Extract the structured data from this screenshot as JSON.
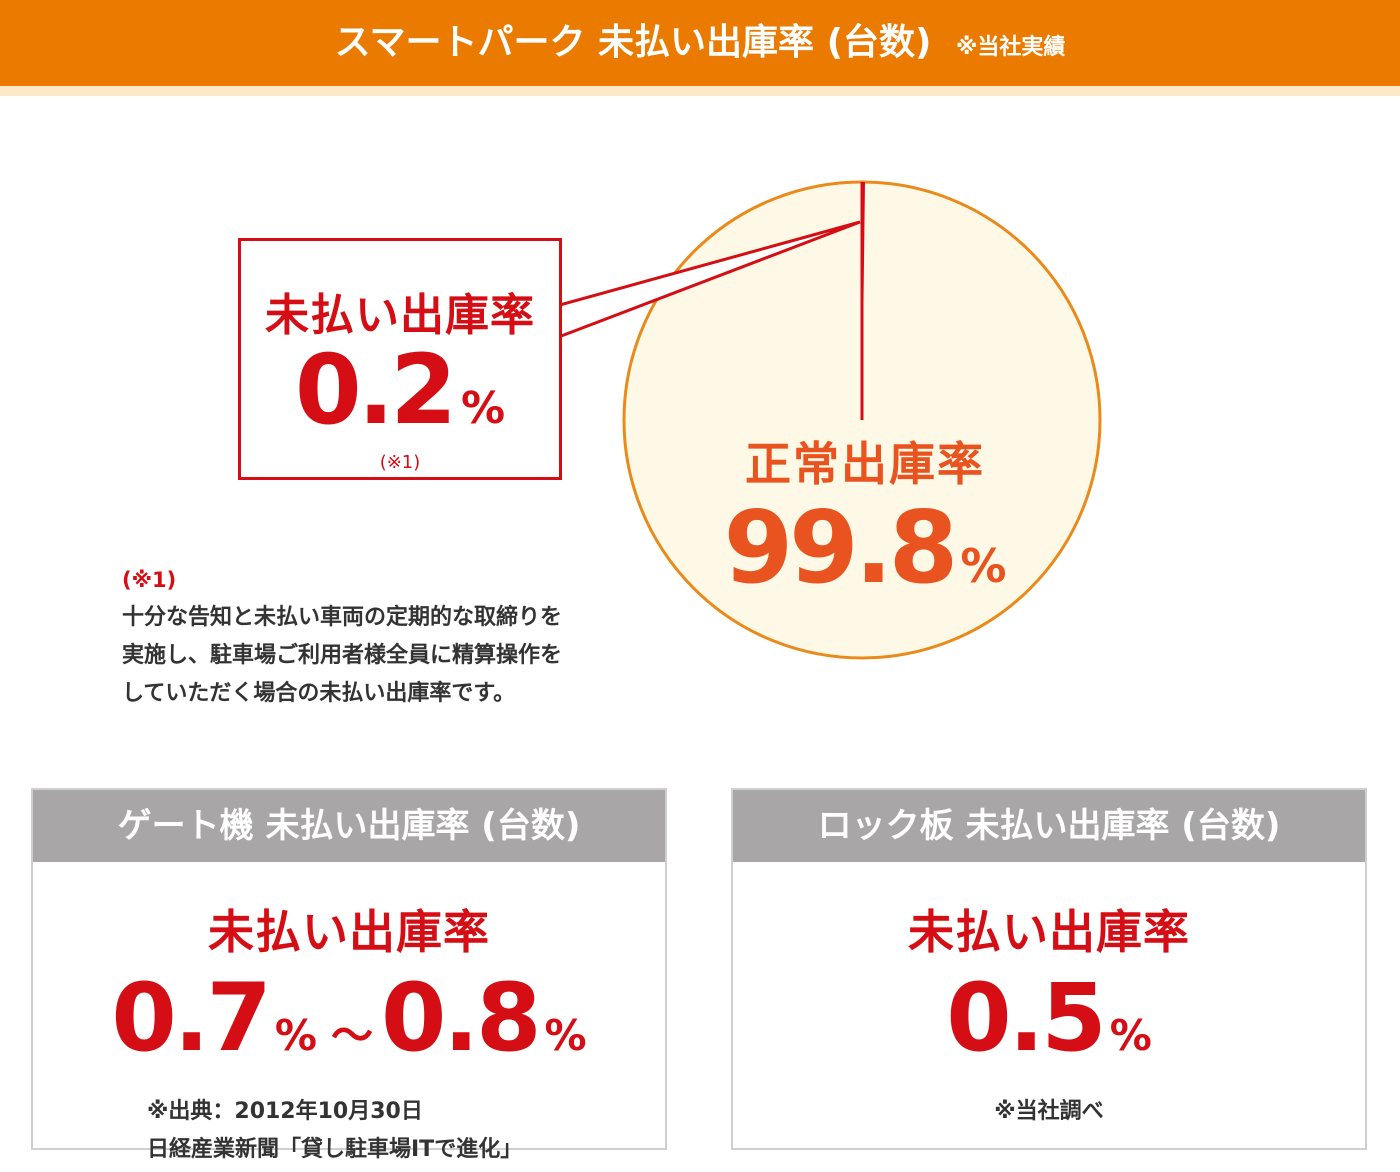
{
  "header": {
    "title": "スマートパーク 未払い出庫率 (台数)",
    "note": "※当社実績"
  },
  "colors": {
    "header_bg": "#ea7a00",
    "header_stripe": "#fde8c8",
    "pie_fill": "#fef9e6",
    "pie_stroke": "#ea8a1a",
    "unpaid": "#d50d14",
    "normal_text": "#e9531f",
    "card_title_bg": "#a8a6a6"
  },
  "chart_data": {
    "type": "pie",
    "slices": [
      {
        "label": "未払い出庫率",
        "value": 0.2
      },
      {
        "label": "正常出庫率",
        "value": 99.8
      }
    ]
  },
  "callout": {
    "label": "未払い出庫率",
    "value": "0.2",
    "unit": "%",
    "ref": "(※1)"
  },
  "normal": {
    "label": "正常出庫率",
    "value": "99.8",
    "unit": "%"
  },
  "footnote": {
    "ref": "(※1)",
    "lines": [
      "十分な告知と未払い車両の定期的な取締りを",
      "実施し、駐車場ご利用者様全員に精算操作を",
      "していただく場合の未払い出庫率です。"
    ]
  },
  "cards": {
    "gate": {
      "title": "ゲート機 未払い出庫率 (台数)",
      "label": "未払い出庫率",
      "value_from": "0.7",
      "unit_from": "%",
      "tilde": "～",
      "value_to": "0.8",
      "unit_to": "%",
      "source_lines": [
        "※出典：2012年10月30日",
        "日経産業新聞「貸し駐車場ITで進化」"
      ]
    },
    "lock": {
      "title": "ロック板 未払い出庫率 (台数)",
      "label": "未払い出庫率",
      "value": "0.5",
      "unit": "%",
      "source": "※当社調べ"
    }
  }
}
